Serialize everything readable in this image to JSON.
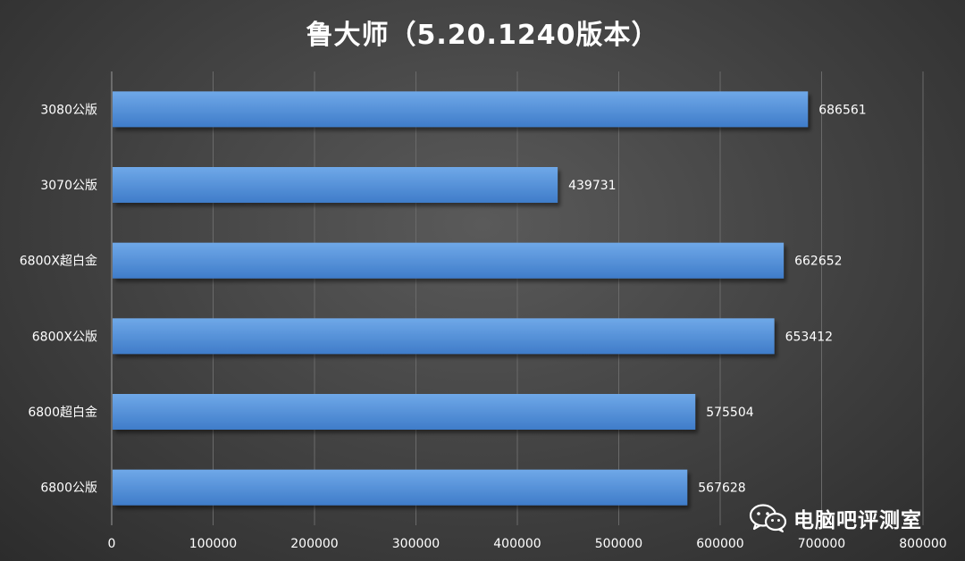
{
  "watermark": {
    "text": "电脑吧评测室",
    "icon": "wechat-icon"
  },
  "colors": {
    "bar_fill_top": "#6fa8e8",
    "bar_fill_bottom": "#3f7cc9",
    "axis_text": "#ffffff",
    "gridline": "#6a6a6a"
  },
  "chart_data": {
    "type": "bar",
    "orientation": "horizontal",
    "title": "鲁大师（5.20.1240版本）",
    "categories": [
      "3080公版",
      "3070公版",
      "6800X超白金",
      "6800X公版",
      "6800超白金",
      "6800公版"
    ],
    "values": [
      686561,
      439731,
      662652,
      653412,
      575504,
      567628
    ],
    "data_labels": [
      "686561",
      "439731",
      "662652",
      "653412",
      "575504",
      "567628"
    ],
    "xlim": [
      0,
      800000
    ],
    "xticks": [
      "0",
      "100000",
      "200000",
      "300000",
      "400000",
      "500000",
      "600000",
      "700000",
      "800000"
    ],
    "grid": "vertical",
    "legend": "none"
  }
}
